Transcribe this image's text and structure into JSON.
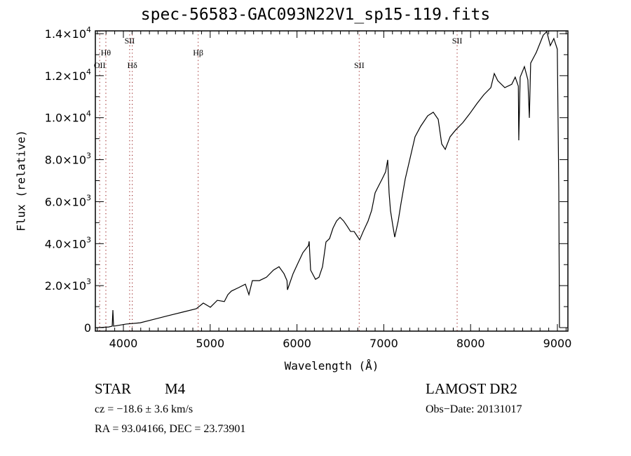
{
  "chart_data": {
    "type": "line",
    "title": "spec-56583-GAC093N22V1_sp15-119.fits",
    "xlabel": "Wavelength (Å)",
    "ylabel": "Flux (relative)",
    "xlim": [
      3677,
      9121
    ],
    "ylim": [
      -167,
      14134
    ],
    "grid": false,
    "x_ticks": [
      4000,
      5000,
      6000,
      7000,
      8000,
      9000
    ],
    "x_tick_labels": [
      "4000",
      "5000",
      "6000",
      "7000",
      "8000",
      "9000"
    ],
    "y_ticks": [
      0,
      2000,
      4000,
      6000,
      8000,
      10000,
      12000,
      14000
    ],
    "y_tick_labels": [
      {
        "mant": "0",
        "exp": ""
      },
      {
        "mant": "2.0×10",
        "exp": "3"
      },
      {
        "mant": "4.0×10",
        "exp": "3"
      },
      {
        "mant": "6.0×10",
        "exp": "3"
      },
      {
        "mant": "8.0×10",
        "exp": "3"
      },
      {
        "mant": "1.0×10",
        "exp": "4"
      },
      {
        "mant": "1.2×10",
        "exp": "4"
      },
      {
        "mant": "1.4×10",
        "exp": "4"
      }
    ],
    "lines": [
      {
        "label": "OII",
        "wavelength": 3727
      },
      {
        "label": "Hθ",
        "wavelength": 3798
      },
      {
        "label": "SII",
        "wavelength": 4072
      },
      {
        "label": "Hδ",
        "wavelength": 4102
      },
      {
        "label": "Hβ",
        "wavelength": 4861
      },
      {
        "label": "SII",
        "wavelength": 6717
      },
      {
        "label": "SII",
        "wavelength": 7845
      }
    ],
    "series": [
      {
        "name": "spectrum",
        "x": [
          3680,
          3709,
          3830,
          3871,
          3879,
          3887,
          4032,
          4194,
          4355,
          4517,
          4679,
          4840,
          4921,
          5002,
          5082,
          5163,
          5204,
          5244,
          5325,
          5405,
          5446,
          5486,
          5567,
          5648,
          5729,
          5793,
          5850,
          5885,
          5890,
          5955,
          6011,
          6068,
          6132,
          6140,
          6157,
          6213,
          6253,
          6294,
          6334,
          6375,
          6415,
          6456,
          6496,
          6537,
          6577,
          6617,
          6658,
          6722,
          6763,
          6819,
          6860,
          6900,
          6940,
          6981,
          7021,
          7045,
          7061,
          7077,
          7102,
          7126,
          7166,
          7198,
          7247,
          7304,
          7360,
          7425,
          7506,
          7570,
          7627,
          7667,
          7708,
          7764,
          7829,
          7910,
          7990,
          8071,
          8152,
          8233,
          8273,
          8313,
          8394,
          8474,
          8514,
          8550,
          8555,
          8571,
          8620,
          8660,
          8677,
          8692,
          8756,
          8837,
          8878,
          8918,
          8959,
          8999,
          9016,
          9024
        ],
        "y": [
          0,
          0,
          30,
          70,
          835,
          70,
          170,
          230,
          400,
          570,
          735,
          900,
          1170,
          970,
          1300,
          1240,
          1570,
          1740,
          1900,
          2070,
          1570,
          2240,
          2240,
          2400,
          2740,
          2900,
          2570,
          2240,
          1800,
          2570,
          3070,
          3570,
          3910,
          4110,
          2740,
          2300,
          2400,
          2900,
          4080,
          4240,
          4740,
          5080,
          5250,
          5080,
          4840,
          4580,
          4580,
          4180,
          4580,
          5080,
          5580,
          6420,
          6750,
          7080,
          7420,
          7990,
          6420,
          5580,
          4910,
          4310,
          5080,
          5910,
          7080,
          8090,
          9090,
          9590,
          10090,
          10260,
          9920,
          8750,
          8490,
          9090,
          9420,
          9760,
          10190,
          10660,
          11090,
          11430,
          12100,
          11760,
          11430,
          11590,
          11930,
          11500,
          8920,
          11930,
          12430,
          11800,
          9990,
          12600,
          13100,
          13930,
          14100,
          13430,
          13770,
          13260,
          6580,
          0
        ]
      }
    ]
  },
  "info": {
    "class": "STAR",
    "subclass": "M4",
    "survey": "LAMOST DR2",
    "cz": "cz = −18.6 ± 3.6 km/s",
    "obs_date": "Obs−Date: 20131017",
    "coords": "RA =  93.04166, DEC =  23.73901"
  }
}
